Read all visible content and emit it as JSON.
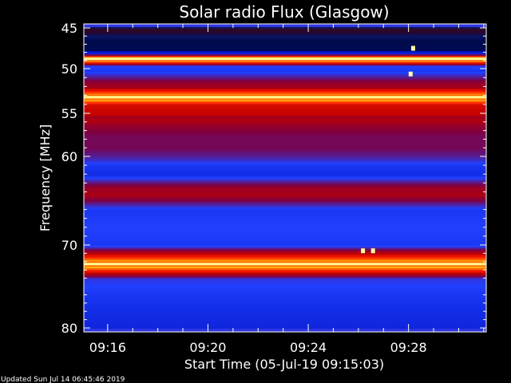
{
  "chart_data": {
    "type": "heatmap",
    "title": "Solar radio Flux (Glasgow)",
    "xlabel": "Start Time (05-Jul-19 09:15:03)",
    "ylabel": "Frequency [MHz]",
    "footer": "Updated Sun Jul 14 06:45:46 2019",
    "x_range_minutes": [
      9.25,
      9.58
    ],
    "x_ticks": [
      {
        "label": "09:16",
        "value": 16
      },
      {
        "label": "09:20",
        "value": 20
      },
      {
        "label": "09:24",
        "value": 24
      },
      {
        "label": "09:28",
        "value": 28
      }
    ],
    "x_lim": [
      15.05,
      31.1
    ],
    "y_lim": [
      44.6,
      80.3
    ],
    "y_ticks": [
      {
        "label": "45",
        "value": 45
      },
      {
        "label": "50",
        "value": 50
      },
      {
        "label": "55",
        "value": 55
      },
      {
        "label": "60",
        "value": 60
      },
      {
        "label": "70",
        "value": 70
      },
      {
        "label": "80",
        "value": 80
      }
    ],
    "y_scale": "nonlinear",
    "colormap": [
      "#000010",
      "#0010c0",
      "#2040ff",
      "#800040",
      "#c00000",
      "#ff2000",
      "#ffa000",
      "#ffff80",
      "#ffffff"
    ],
    "bands": [
      {
        "freq": 45.0,
        "level": 0.6
      },
      {
        "freq": 46.5,
        "level": 0.1
      },
      {
        "freq": 48.0,
        "level": 0.15
      },
      {
        "freq": 48.8,
        "level": 1.0
      },
      {
        "freq": 49.6,
        "level": 0.3
      },
      {
        "freq": 50.2,
        "level": 0.25
      },
      {
        "freq": 51.5,
        "level": 0.45
      },
      {
        "freq": 52.0,
        "level": 0.5
      },
      {
        "freq": 52.8,
        "level": 0.8
      },
      {
        "freq": 53.2,
        "level": 0.95
      },
      {
        "freq": 54.0,
        "level": 0.6
      },
      {
        "freq": 55.5,
        "level": 0.55
      },
      {
        "freq": 56.5,
        "level": 0.45
      },
      {
        "freq": 57.5,
        "level": 0.4
      },
      {
        "freq": 59.0,
        "level": 0.4
      },
      {
        "freq": 60.0,
        "level": 0.35
      },
      {
        "freq": 61.0,
        "level": 0.25
      },
      {
        "freq": 62.0,
        "level": 0.22
      },
      {
        "freq": 64.0,
        "level": 0.55
      },
      {
        "freq": 66.0,
        "level": 0.25
      },
      {
        "freq": 68.0,
        "level": 0.28
      },
      {
        "freq": 70.0,
        "level": 0.25
      },
      {
        "freq": 72.3,
        "level": 0.97
      },
      {
        "freq": 74.0,
        "level": 0.3
      },
      {
        "freq": 76.0,
        "level": 0.25
      },
      {
        "freq": 78.0,
        "level": 0.22
      },
      {
        "freq": 80.0,
        "level": 0.2
      }
    ]
  }
}
